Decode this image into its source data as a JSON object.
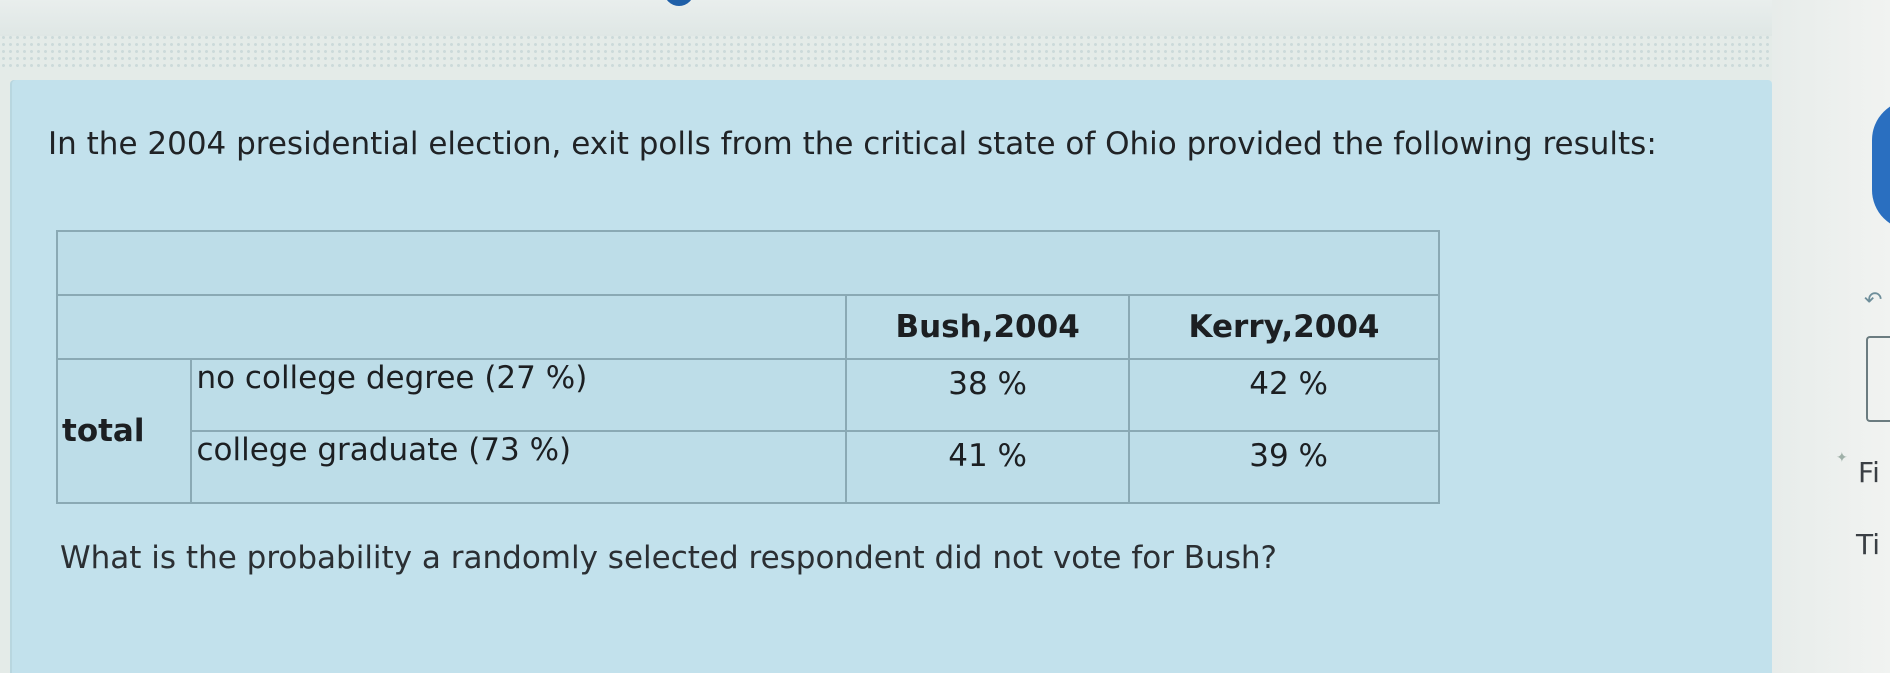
{
  "question": {
    "intro": "In the 2004 presidential election, exit polls from the critical state of Ohio provided the following results:",
    "prompt": "What is the probability a randomly selected respondent did not vote for Bush?"
  },
  "table": {
    "headers": [
      "Bush,2004",
      "Kerry,2004"
    ],
    "row_group_label": "total",
    "rows": [
      {
        "category": "no college degree (27 %)",
        "bush": "38 %",
        "kerry": "42 %"
      },
      {
        "category": "college graduate  (73 %)",
        "bush": "41 %",
        "kerry": "39 %"
      }
    ]
  },
  "side": {
    "label_1": "Fi",
    "label_2": "Ti"
  },
  "icons": [
    "undo-icon",
    "star-icon"
  ],
  "colors": {
    "panel": "#c2e1ec",
    "accent": "#2a6fc0"
  }
}
